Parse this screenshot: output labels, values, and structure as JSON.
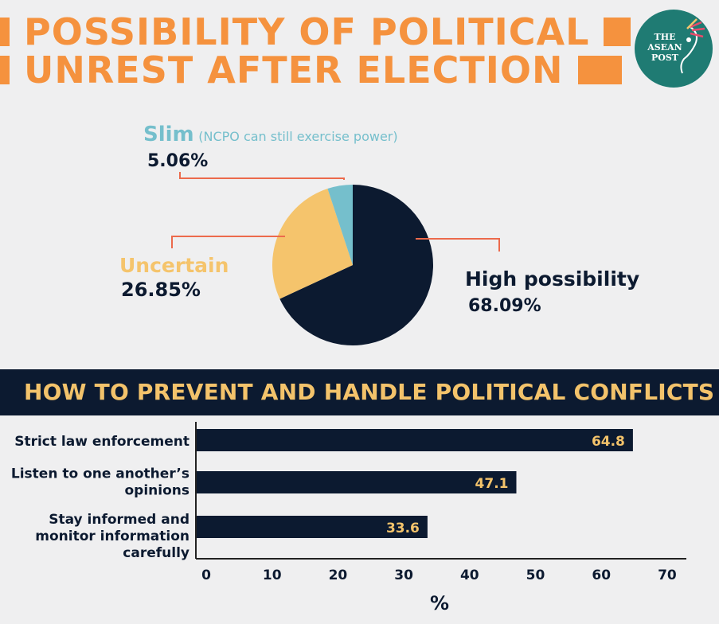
{
  "header": {
    "title_line1": "POSSIBILITY OF POLITICAL",
    "title_line2": "UNREST AFTER ELECTION",
    "logo_text": "THE ASEAN POST"
  },
  "colors": {
    "accent": "#f5923e",
    "navy": "#0c1a30",
    "gold": "#f3c36b",
    "pie_high": "#0c1a30",
    "pie_uncertain": "#f5c46c",
    "pie_slim": "#75bfcc",
    "leader": "#ec6a4c",
    "logo_bg": "#1f7b73"
  },
  "chart_data": [
    {
      "type": "pie",
      "slices": [
        {
          "label": "High possibility",
          "value": 68.09,
          "value_label": "68.09%"
        },
        {
          "label": "Uncertain",
          "value": 26.85,
          "value_label": "26.85%"
        },
        {
          "label": "Slim",
          "note": "(NCPO can still exercise power)",
          "value": 5.06,
          "value_label": "5.06%"
        }
      ]
    },
    {
      "type": "bar",
      "orientation": "horizontal",
      "title": "HOW TO PREVENT AND HANDLE POLITICAL CONFLICTS",
      "categories": [
        [
          "Strict law enforcement"
        ],
        [
          "Listen to one another’s",
          "opinions"
        ],
        [
          "Stay informed and",
          "monitor information",
          "carefully"
        ]
      ],
      "values": [
        64.8,
        47.1,
        33.6
      ],
      "value_labels": [
        "64.8",
        "47.1",
        "33.6"
      ],
      "xlim": [
        0,
        70
      ],
      "xticks": [
        "0",
        "10",
        "20",
        "30",
        "40",
        "50",
        "60",
        "70"
      ],
      "xlabel": "%",
      "grid": false
    }
  ]
}
